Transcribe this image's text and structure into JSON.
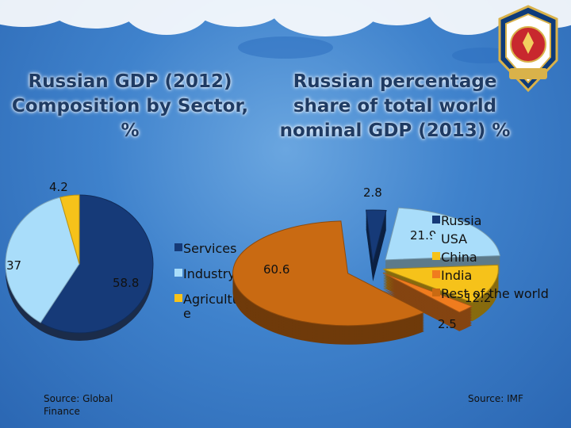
{
  "slide": {
    "left_title": "Russian GDP (2012) Composition by Sector, %",
    "right_title": "Russian percentage share of total world nominal GDP (2013) %",
    "left_source": [
      "Source:  Global",
      "Finance"
    ],
    "right_source": "Source:  IMF"
  },
  "colors": {
    "background": "#3f82cc",
    "title_text": "#1f3b63"
  },
  "chart_data": [
    {
      "type": "pie",
      "title": "Russian GDP (2012) Composition by Sector, %",
      "slices": [
        {
          "name": "Services",
          "value": 58.8,
          "label": "58.8",
          "color": "#163a78"
        },
        {
          "name": "Industry",
          "value": 37,
          "label": "37",
          "color": "#a9ddfa"
        },
        {
          "name": "Agricultur e",
          "value": 4.2,
          "label": "4.2",
          "color": "#f6c21a"
        }
      ],
      "legend": [
        "Services",
        "Industry",
        [
          "Agricultur",
          "e"
        ]
      ],
      "legend_position": "right",
      "source": "Source: Global Finance"
    },
    {
      "type": "pie",
      "title": "Russian percentage share of total world nominal GDP (2013) %",
      "slices": [
        {
          "name": "Russia",
          "value": 2.8,
          "label": "2.8",
          "color": "#163a78"
        },
        {
          "name": "USA",
          "value": 21.9,
          "label": "21.9",
          "color": "#a9ddfa"
        },
        {
          "name": "China",
          "value": 12.2,
          "label": "12.2",
          "color": "#f6c21a"
        },
        {
          "name": "India",
          "value": 2.5,
          "label": "2.5",
          "color": "#f07c1e"
        },
        {
          "name": "Rest of the world",
          "value": 60.6,
          "label": "60.6",
          "color": "#c96a12"
        }
      ],
      "legend": [
        "Russia",
        "USA",
        "China",
        "India",
        "Rest of the world"
      ],
      "legend_position": "right",
      "source": "Source: IMF"
    }
  ]
}
